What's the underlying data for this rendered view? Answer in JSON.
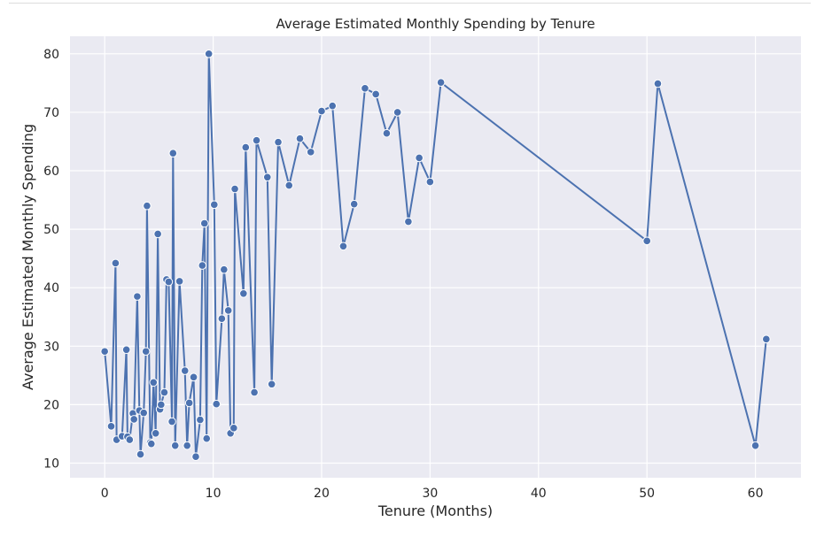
{
  "chart_data": {
    "type": "line",
    "title": "Average Estimated Monthly Spending by Tenure",
    "xlabel": "Tenure (Months)",
    "ylabel": "Average Estimated Monthly Spending",
    "xlim": [
      -3.2,
      64.2
    ],
    "ylim": [
      7.5,
      83.0
    ],
    "xticks": [
      0,
      10,
      20,
      30,
      40,
      50,
      60
    ],
    "yticks": [
      10,
      20,
      30,
      40,
      50,
      60,
      70,
      80
    ],
    "grid": true,
    "legend": "none",
    "colors": {
      "line": "#4c72b0",
      "marker_edge": "#ffffff",
      "plot_background": "#eaeaf2",
      "grid": "#ffffff",
      "text": "#262626"
    },
    "series": [
      {
        "x": [
          0,
          0.6,
          1.0,
          1.1,
          1.6,
          2.0,
          2.1,
          2.3,
          2.6,
          2.7,
          3.0,
          3.2,
          3.3,
          3.6,
          3.8,
          3.9,
          4.2,
          4.3,
          4.5,
          4.7,
          4.9,
          5.1,
          5.2,
          5.5,
          5.7,
          5.9,
          6.2,
          6.3,
          6.5,
          6.9,
          7.4,
          7.6,
          7.8,
          8.2,
          8.4,
          8.8,
          9.0,
          9.2,
          9.4,
          9.6,
          10.1,
          10.3,
          10.8,
          11.0,
          11.4,
          11.6,
          11.9,
          12.0,
          12.8,
          13.0,
          13.8,
          14.0,
          15.0,
          15.4,
          16.0,
          17.0,
          18.0,
          19.0,
          20.0,
          21.0,
          22.0,
          23.0,
          24.0,
          25.0,
          26.0,
          27.0,
          28.0,
          29.0,
          30.0,
          31.0,
          50.0,
          51.0,
          60.0,
          61.0
        ],
        "y": [
          29.1,
          16.3,
          44.2,
          14.0,
          14.6,
          29.4,
          14.5,
          14.0,
          18.5,
          17.5,
          38.5,
          19.0,
          11.5,
          18.6,
          29.1,
          54.0,
          13.5,
          13.3,
          23.8,
          15.1,
          49.2,
          19.2,
          20.0,
          22.1,
          41.4,
          41.0,
          17.1,
          63.0,
          13.0,
          41.1,
          25.8,
          13.0,
          20.3,
          24.7,
          11.1,
          17.4,
          43.8,
          51.0,
          14.2,
          80.0,
          54.2,
          20.1,
          34.7,
          43.1,
          36.1,
          15.1,
          16.0,
          56.9,
          39.0,
          64.0,
          22.1,
          65.2,
          58.9,
          23.5,
          64.9,
          57.5,
          65.5,
          63.2,
          70.2,
          71.1,
          47.1,
          54.3,
          74.1,
          73.1,
          66.4,
          70.0,
          51.3,
          62.2,
          58.1,
          75.1,
          48.0,
          74.9,
          13.0,
          31.2
        ]
      }
    ]
  }
}
